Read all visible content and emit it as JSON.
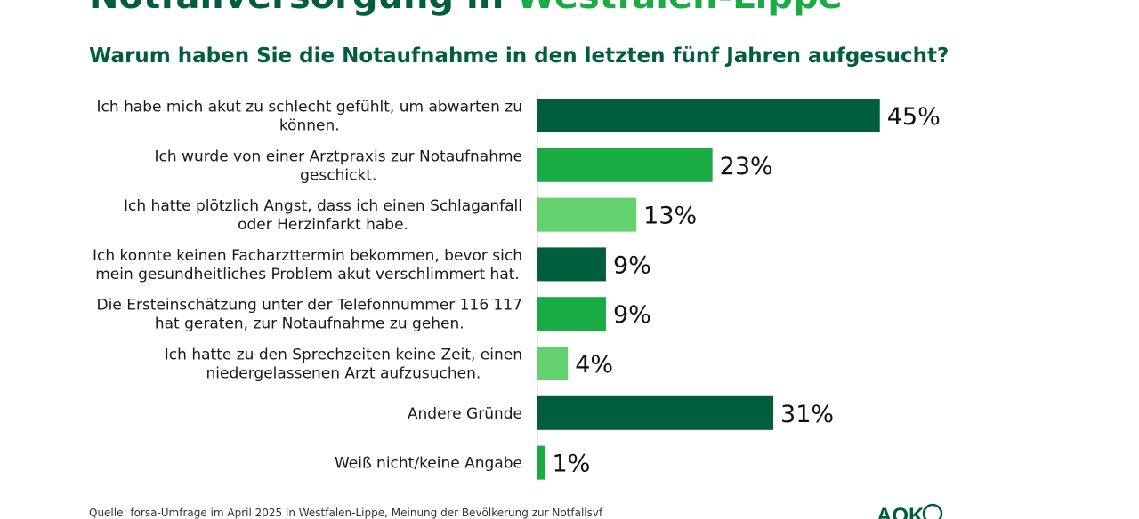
{
  "header": {
    "title_part1": "Notfallversorgung in",
    "title_part2": "Westfalen-Lippe",
    "subtitle": "Warum haben Sie die Notaufnahme in den letzten fünf Jahren aufgesucht?"
  },
  "chart_data": {
    "type": "bar",
    "orientation": "horizontal",
    "title": "Warum haben Sie die Notaufnahme in den letzten fünf Jahren aufgesucht?",
    "xlim": [
      0,
      100
    ],
    "grid": false,
    "categories": [
      "Ich habe mich akut zu schlecht gefühlt, um abwarten zu können.",
      "Ich wurde von einer Arztpraxis zur Notaufnahme geschickt.",
      "Ich hatte plötzlich Angst, dass ich einen Schlaganfall oder Herzinfarkt habe.",
      "Ich konnte keinen Facharzttermin bekommen, bevor sich mein gesundheitliches Problem akut verschlimmert hat.",
      "Die Ersteinschätzung unter der Telefonnummer 116 117 hat geraten, zur Notaufnahme zu gehen.",
      "Ich hatte zu den Sprechzeiten keine Zeit, einen niedergelassenen Arzt aufzusuchen.",
      "Andere Gründe",
      "Weiß nicht/keine Angabe"
    ],
    "label_lines": [
      [
        "Ich habe mich akut zu schlecht gefühlt, um abwarten zu",
        "können."
      ],
      [
        "Ich wurde von einer Arztpraxis zur Notaufnahme",
        "geschickt."
      ],
      [
        "Ich hatte plötzlich Angst, dass ich einen Schlaganfall",
        "oder Herzinfarkt habe."
      ],
      [
        "Ich konnte keinen Facharzttermin bekommen, bevor sich",
        "mein gesundheitliches Problem akut verschlimmert hat."
      ],
      [
        "Die Ersteinschätzung unter der Telefonnummer 116 117",
        "hat geraten, zur Notaufnahme zu gehen."
      ],
      [
        "Ich hatte zu den Sprechzeiten keine Zeit, einen",
        "niedergelassenen Arzt aufzusuchen."
      ],
      [
        "Andere Gründe"
      ],
      [
        "Weiß nicht/keine Angabe"
      ]
    ],
    "values": [
      45,
      23,
      13,
      9,
      9,
      4,
      31,
      1
    ],
    "value_labels": [
      "45%",
      "23%",
      "13%",
      "9%",
      "9%",
      "4%",
      "31%",
      "1%"
    ],
    "colors": [
      "#005e3c",
      "#1aab45",
      "#62d16e",
      "#005e3c",
      "#1aab45",
      "#62d16e",
      "#005e3c",
      "#1aab45"
    ]
  },
  "footer": {
    "source": "Quelle: forsa-Umfrage im April 2025 in Westfalen-Lippe, Meinung der Bevölkerung zur Notfallsvf"
  },
  "logo": {
    "label": "AOK",
    "icon": "aok-tree-icon",
    "color": "#005e3c"
  }
}
